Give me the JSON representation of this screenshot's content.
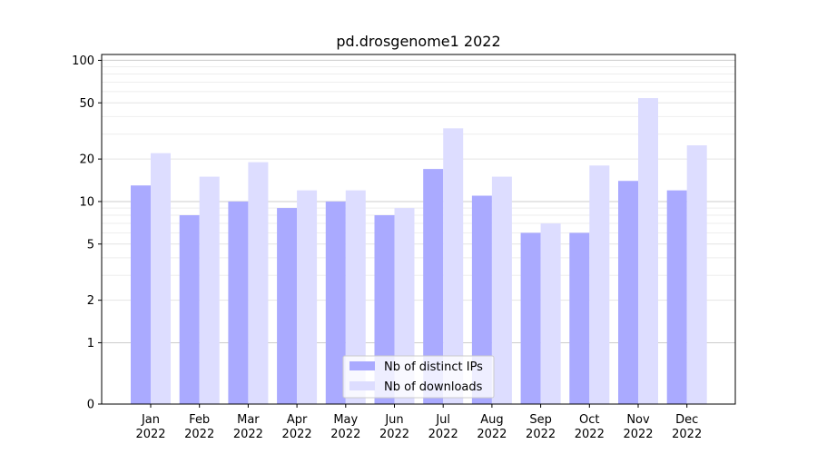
{
  "chart_data": {
    "type": "bar",
    "title": "pd.drosgenome1 2022",
    "xlabel": "",
    "ylabel": "",
    "y_scale": "symlog",
    "ylim": [
      0,
      110
    ],
    "y_ticks": [
      0,
      1,
      2,
      5,
      10,
      20,
      50,
      100
    ],
    "y_tick_labels": [
      "0",
      "1",
      "2",
      "5",
      "10",
      "20",
      "50",
      "100"
    ],
    "categories": [
      "Jan\n2022",
      "Feb\n2022",
      "Mar\n2022",
      "Apr\n2022",
      "May\n2022",
      "Jun\n2022",
      "Jul\n2022",
      "Aug\n2022",
      "Sep\n2022",
      "Oct\n2022",
      "Nov\n2022",
      "Dec\n2022"
    ],
    "category_lines": [
      [
        "Jan",
        "2022"
      ],
      [
        "Feb",
        "2022"
      ],
      [
        "Mar",
        "2022"
      ],
      [
        "Apr",
        "2022"
      ],
      [
        "May",
        "2022"
      ],
      [
        "Jun",
        "2022"
      ],
      [
        "Jul",
        "2022"
      ],
      [
        "Aug",
        "2022"
      ],
      [
        "Sep",
        "2022"
      ],
      [
        "Oct",
        "2022"
      ],
      [
        "Nov",
        "2022"
      ],
      [
        "Dec",
        "2022"
      ]
    ],
    "series": [
      {
        "name": "Nb of distinct IPs",
        "color": "#aaaaff",
        "values": [
          13,
          8,
          10,
          9,
          10,
          8,
          17,
          11,
          6,
          6,
          14,
          12
        ]
      },
      {
        "name": "Nb of downloads",
        "color": "#ddddff",
        "values": [
          22,
          15,
          19,
          12,
          12,
          9,
          33,
          15,
          7,
          18,
          54,
          25
        ]
      }
    ],
    "grid": true,
    "legend_position": "lower-center"
  }
}
